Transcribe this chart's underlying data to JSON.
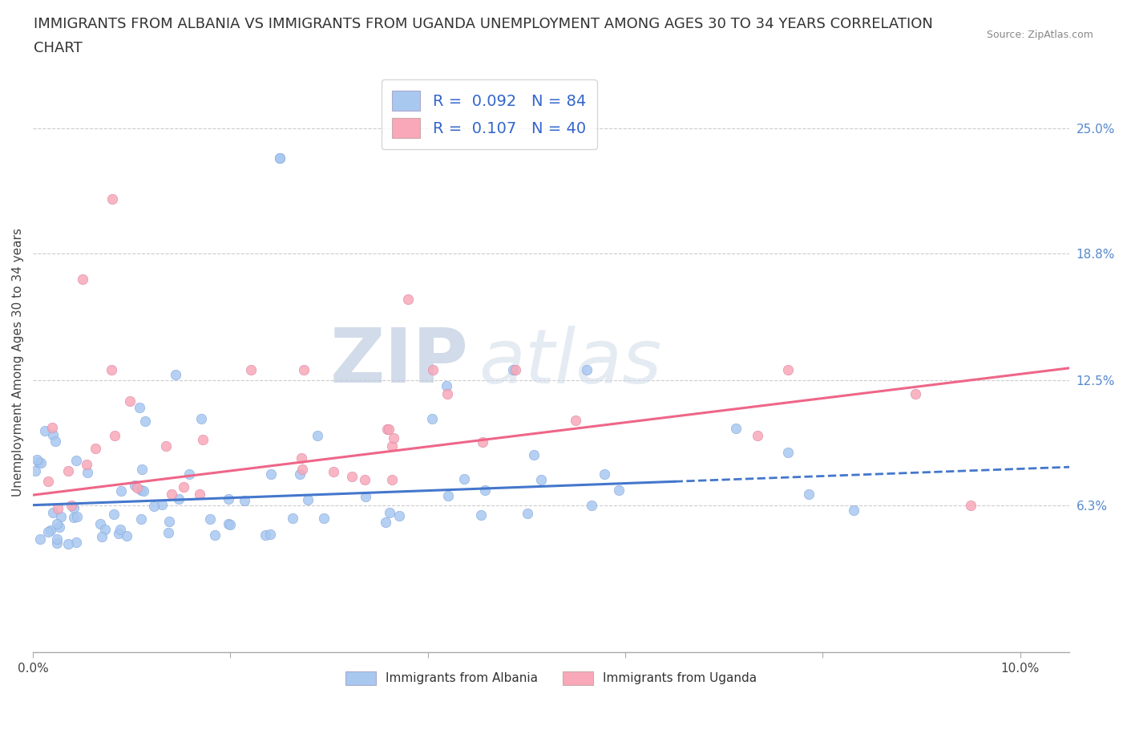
{
  "title_line1": "IMMIGRANTS FROM ALBANIA VS IMMIGRANTS FROM UGANDA UNEMPLOYMENT AMONG AGES 30 TO 34 YEARS CORRELATION",
  "title_line2": "CHART",
  "source_text": "Source: ZipAtlas.com",
  "ylabel": "Unemployment Among Ages 30 to 34 years",
  "xlim": [
    0.0,
    0.105
  ],
  "ylim": [
    -0.01,
    0.278
  ],
  "xtick_vals": [
    0.0,
    0.02,
    0.04,
    0.06,
    0.08,
    0.1
  ],
  "xtick_labels": [
    "0.0%",
    "",
    "",
    "",
    "",
    "10.0%"
  ],
  "ytick_vals": [
    0.063,
    0.125,
    0.188,
    0.25
  ],
  "ytick_labels": [
    "6.3%",
    "12.5%",
    "18.8%",
    "25.0%"
  ],
  "grid_vals": [
    0.063,
    0.125,
    0.188,
    0.25
  ],
  "albania_color": "#a8c8f0",
  "uganda_color": "#f8a8b8",
  "albania_line_color": "#4477cc",
  "uganda_line_color": "#ee6688",
  "legend_label_albania": "Immigrants from Albania",
  "legend_label_uganda": "Immigrants from Uganda",
  "watermark_zip": "ZIP",
  "watermark_atlas": "atlas",
  "title_fontsize": 13,
  "axis_label_fontsize": 11,
  "tick_fontsize": 11,
  "tick_color": "#5588cc",
  "albania_R": 0.092,
  "albania_N": 84,
  "uganda_R": 0.107,
  "uganda_N": 40,
  "legend_r_albania": "0.092",
  "legend_n_albania": "84",
  "legend_r_uganda": "0.107",
  "legend_n_uganda": "40",
  "albania_intercept": 0.063,
  "albania_slope": 0.18,
  "uganda_intercept": 0.068,
  "uganda_slope": 0.6
}
